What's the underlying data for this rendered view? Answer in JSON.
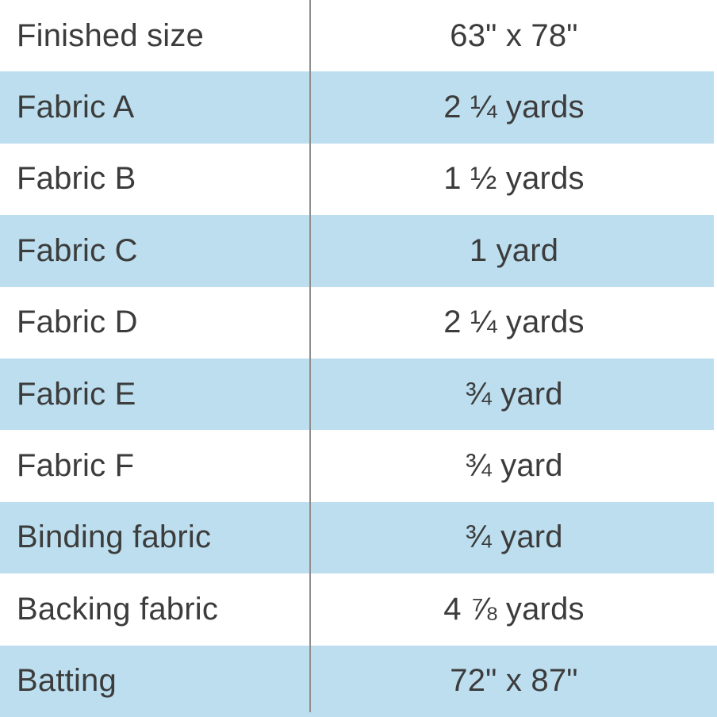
{
  "colors": {
    "row_highlight": "#bcdeee",
    "divider": "#8e8e8e",
    "text": "#3c3c3c"
  },
  "table": {
    "rows": [
      {
        "label": "Finished size",
        "value": "63\" x 78\""
      },
      {
        "label": "Fabric A",
        "value": "2 ¼ yards"
      },
      {
        "label": "Fabric B",
        "value": "1 ½ yards"
      },
      {
        "label": "Fabric C",
        "value": "1 yard"
      },
      {
        "label": "Fabric D",
        "value": "2 ¼ yards"
      },
      {
        "label": "Fabric E",
        "value": "¾ yard"
      },
      {
        "label": "Fabric F",
        "value": "¾ yard"
      },
      {
        "label": "Binding fabric",
        "value": "¾ yard"
      },
      {
        "label": "Backing fabric",
        "value": "4 ⅞ yards"
      },
      {
        "label": "Batting",
        "value": "72\" x 87\""
      }
    ]
  }
}
